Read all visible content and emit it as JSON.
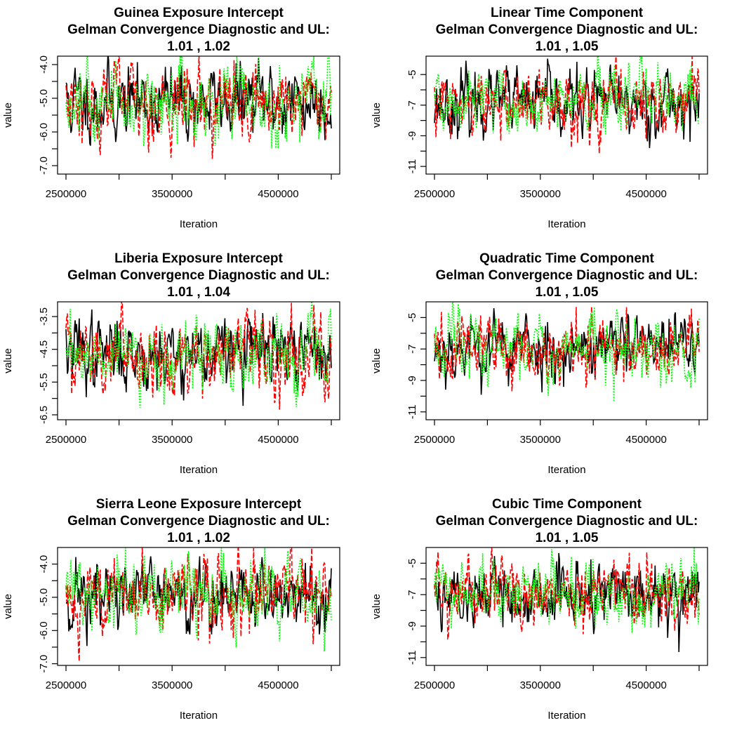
{
  "chart_data": [
    {
      "type": "line",
      "title": [
        "Guinea Exposure Intercept",
        "Gelman Convergence Diagnostic and UL:",
        "1.01 ,  1.02"
      ],
      "xlabel": "Iteration",
      "ylabel": "value",
      "xlim": [
        2500000,
        5000000
      ],
      "ylim": [
        -7.25,
        -3.75
      ],
      "xticks": [
        2500000,
        3000000,
        3500000,
        4000000,
        4500000,
        5000000
      ],
      "xtick_labels": [
        "2500000",
        "",
        "3500000",
        "",
        "4500000",
        ""
      ],
      "yticks": [
        -7.0,
        -6.5,
        -6.0,
        -5.5,
        -5.0,
        -4.5,
        -4.0
      ],
      "ytick_labels": [
        "-7.0",
        "",
        "-6.0",
        "",
        "-5.0",
        "",
        "-4.0"
      ],
      "mean": -5.1,
      "sd": 0.55,
      "seed": 11,
      "series": [
        {
          "color": "#000000",
          "dash": "solid"
        },
        {
          "color": "#ff0000",
          "dash": "dashed"
        },
        {
          "color": "#00ff00",
          "dash": "dotted"
        }
      ]
    },
    {
      "type": "line",
      "title": [
        "Linear Time Component",
        "Gelman Convergence Diagnostic and UL:",
        "1.01 ,  1.05"
      ],
      "xlabel": "Iteration",
      "ylabel": "value",
      "xlim": [
        2500000,
        5000000
      ],
      "ylim": [
        -11.5,
        -3.8
      ],
      "xticks": [
        2500000,
        3000000,
        3500000,
        4000000,
        4500000,
        5000000
      ],
      "xtick_labels": [
        "2500000",
        "",
        "3500000",
        "",
        "4500000",
        ""
      ],
      "yticks": [
        -11,
        -10,
        -9,
        -8,
        -7,
        -6,
        -5
      ],
      "ytick_labels": [
        "-11",
        "",
        "-9",
        "",
        "-7",
        "",
        "-5"
      ],
      "mean": -6.9,
      "sd": 1.05,
      "seed": 23,
      "series": [
        {
          "color": "#000000",
          "dash": "solid"
        },
        {
          "color": "#ff0000",
          "dash": "dashed"
        },
        {
          "color": "#00ff00",
          "dash": "dotted"
        }
      ]
    },
    {
      "type": "line",
      "title": [
        "Liberia Exposure Intercept",
        "Gelman Convergence Diagnostic and UL:",
        "1.01 ,  1.04"
      ],
      "xlabel": "Iteration",
      "ylabel": "value",
      "xlim": [
        2500000,
        5000000
      ],
      "ylim": [
        -6.65,
        -3.05
      ],
      "xticks": [
        2500000,
        3000000,
        3500000,
        4000000,
        4500000,
        5000000
      ],
      "xtick_labels": [
        "2500000",
        "",
        "3500000",
        "",
        "4500000",
        ""
      ],
      "yticks": [
        -6.5,
        -6.0,
        -5.5,
        -5.0,
        -4.5,
        -4.0,
        -3.5
      ],
      "ytick_labels": [
        "-6.5",
        "",
        "-5.5",
        "",
        "-4.5",
        "",
        "-3.5"
      ],
      "mean": -4.6,
      "sd": 0.55,
      "seed": 37,
      "series": [
        {
          "color": "#000000",
          "dash": "solid"
        },
        {
          "color": "#ff0000",
          "dash": "dashed"
        },
        {
          "color": "#00ff00",
          "dash": "dotted"
        }
      ]
    },
    {
      "type": "line",
      "title": [
        "Quadratic Time Component",
        "Gelman Convergence Diagnostic and UL:",
        "1.01 ,  1.05"
      ],
      "xlabel": "Iteration",
      "ylabel": "value",
      "xlim": [
        2500000,
        5000000
      ],
      "ylim": [
        -11.5,
        -4.0
      ],
      "xticks": [
        2500000,
        3000000,
        3500000,
        4000000,
        4500000,
        5000000
      ],
      "xtick_labels": [
        "2500000",
        "",
        "3500000",
        "",
        "4500000",
        ""
      ],
      "yticks": [
        -11,
        -10,
        -9,
        -8,
        -7,
        -6,
        -5
      ],
      "ytick_labels": [
        "-11",
        "",
        "-9",
        "",
        "-7",
        "",
        "-5"
      ],
      "mean": -6.9,
      "sd": 1.05,
      "seed": 53,
      "series": [
        {
          "color": "#000000",
          "dash": "solid"
        },
        {
          "color": "#ff0000",
          "dash": "dashed"
        },
        {
          "color": "#00ff00",
          "dash": "dotted"
        }
      ]
    },
    {
      "type": "line",
      "title": [
        "Sierra Leone Exposure Intercept",
        "Gelman Convergence Diagnostic and UL:",
        "1.01 ,  1.02"
      ],
      "xlabel": "Iteration",
      "ylabel": "value",
      "xlim": [
        2500000,
        5000000
      ],
      "ylim": [
        -7.05,
        -3.5
      ],
      "xticks": [
        2500000,
        3000000,
        3500000,
        4000000,
        4500000,
        5000000
      ],
      "xtick_labels": [
        "2500000",
        "",
        "3500000",
        "",
        "4500000",
        ""
      ],
      "yticks": [
        -7.0,
        -6.5,
        -6.0,
        -5.5,
        -5.0,
        -4.5,
        -4.0
      ],
      "ytick_labels": [
        "-7.0",
        "",
        "-6.0",
        "",
        "-5.0",
        "",
        "-4.0"
      ],
      "mean": -4.95,
      "sd": 0.55,
      "seed": 71,
      "series": [
        {
          "color": "#000000",
          "dash": "solid"
        },
        {
          "color": "#ff0000",
          "dash": "dashed"
        },
        {
          "color": "#00ff00",
          "dash": "dotted"
        }
      ]
    },
    {
      "type": "line",
      "title": [
        "Cubic Time Component",
        "Gelman Convergence Diagnostic and UL:",
        "1.01 ,  1.05"
      ],
      "xlabel": "Iteration",
      "ylabel": "value",
      "xlim": [
        2500000,
        5000000
      ],
      "ylim": [
        -11.5,
        -4.0
      ],
      "xticks": [
        2500000,
        3000000,
        3500000,
        4000000,
        4500000,
        5000000
      ],
      "xtick_labels": [
        "2500000",
        "",
        "3500000",
        "",
        "4500000",
        ""
      ],
      "yticks": [
        -11,
        -10,
        -9,
        -8,
        -7,
        -6,
        -5
      ],
      "ytick_labels": [
        "-11",
        "",
        "-9",
        "",
        "-7",
        "",
        "-5"
      ],
      "mean": -6.9,
      "sd": 1.05,
      "seed": 89,
      "series": [
        {
          "color": "#000000",
          "dash": "solid"
        },
        {
          "color": "#ff0000",
          "dash": "dashed"
        },
        {
          "color": "#00ff00",
          "dash": "dotted"
        }
      ]
    }
  ]
}
